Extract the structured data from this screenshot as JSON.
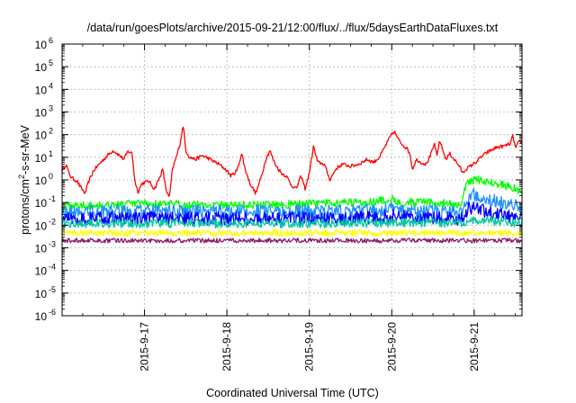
{
  "chart_data": {
    "type": "line",
    "title": "/data/run/goesPlots/archive/2015-09-21/12:00/flux/../flux/5daysEarthDataFluxes.txt",
    "xlabel": "Coordinated Universal Time (UTC)",
    "ylabel": {
      "prefix": "protons/cm",
      "sup": "2",
      "suffix": "-s-sr-MeV"
    },
    "yscale": "log",
    "ylim_exponents": [
      -6,
      6
    ],
    "y_ticks": [
      {
        "base": "10",
        "exp": "-6"
      },
      {
        "base": "10",
        "exp": "-5"
      },
      {
        "base": "10",
        "exp": "-4"
      },
      {
        "base": "10",
        "exp": "-3"
      },
      {
        "base": "10",
        "exp": "-2"
      },
      {
        "base": "10",
        "exp": "-1"
      },
      {
        "base": "10",
        "exp": "0"
      },
      {
        "base": "10",
        "exp": "1"
      },
      {
        "base": "10",
        "exp": "2"
      },
      {
        "base": "10",
        "exp": "3"
      },
      {
        "base": "10",
        "exp": "4"
      },
      {
        "base": "10",
        "exp": "5"
      },
      {
        "base": "10",
        "exp": "6"
      }
    ],
    "x_range_days": [
      16.0,
      21.58
    ],
    "x_ticks": [
      {
        "label": "2015-9-17",
        "day": 17
      },
      {
        "label": "2015-9-18",
        "day": 18
      },
      {
        "label": "2015-9-19",
        "day": 19
      },
      {
        "label": "2015-9-20",
        "day": 20
      },
      {
        "label": "2015-9-21",
        "day": 21
      }
    ],
    "grid": true,
    "series": [
      {
        "color": "#ff0000",
        "noise": 0.08,
        "points": [
          [
            16.0,
            2.5
          ],
          [
            16.05,
            5
          ],
          [
            16.08,
            2.0
          ],
          [
            16.12,
            1.2
          ],
          [
            16.18,
            0.9
          ],
          [
            16.22,
            0.5
          ],
          [
            16.28,
            0.25
          ],
          [
            16.32,
            0.8
          ],
          [
            16.38,
            2.5
          ],
          [
            16.45,
            5
          ],
          [
            16.55,
            12
          ],
          [
            16.62,
            20
          ],
          [
            16.7,
            12
          ],
          [
            16.75,
            8
          ],
          [
            16.8,
            18
          ],
          [
            16.85,
            15
          ],
          [
            16.88,
            1.0
          ],
          [
            16.92,
            0.3
          ],
          [
            16.97,
            0.7
          ],
          [
            17.05,
            0.9
          ],
          [
            17.12,
            0.4
          ],
          [
            17.18,
            1.2
          ],
          [
            17.22,
            3
          ],
          [
            17.26,
            0.4
          ],
          [
            17.3,
            0.15
          ],
          [
            17.34,
            3
          ],
          [
            17.4,
            15
          ],
          [
            17.43,
            40
          ],
          [
            17.47,
            260
          ],
          [
            17.5,
            20
          ],
          [
            17.55,
            10
          ],
          [
            17.62,
            8
          ],
          [
            17.7,
            12
          ],
          [
            17.8,
            8
          ],
          [
            17.9,
            5
          ],
          [
            17.98,
            3
          ],
          [
            18.05,
            1.5
          ],
          [
            18.12,
            2.5
          ],
          [
            18.18,
            15
          ],
          [
            18.22,
            3
          ],
          [
            18.28,
            0.7
          ],
          [
            18.35,
            0.25
          ],
          [
            18.42,
            1.5
          ],
          [
            18.47,
            8
          ],
          [
            18.52,
            20
          ],
          [
            18.56,
            8
          ],
          [
            18.6,
            4
          ],
          [
            18.66,
            2
          ],
          [
            18.72,
            1.5
          ],
          [
            18.78,
            0.6
          ],
          [
            18.84,
            0.4
          ],
          [
            18.9,
            1.5
          ],
          [
            18.95,
            0.4
          ],
          [
            19.0,
            2
          ],
          [
            19.05,
            30
          ],
          [
            19.1,
            6
          ],
          [
            19.18,
            5
          ],
          [
            19.25,
            1
          ],
          [
            19.32,
            3
          ],
          [
            19.4,
            5
          ],
          [
            19.5,
            4
          ],
          [
            19.6,
            5
          ],
          [
            19.7,
            8
          ],
          [
            19.78,
            6
          ],
          [
            19.85,
            10
          ],
          [
            19.92,
            30
          ],
          [
            19.98,
            80
          ],
          [
            20.03,
            140
          ],
          [
            20.08,
            60
          ],
          [
            20.12,
            40
          ],
          [
            20.18,
            25
          ],
          [
            20.22,
            15
          ],
          [
            20.25,
            3
          ],
          [
            20.3,
            8
          ],
          [
            20.35,
            6
          ],
          [
            20.42,
            5
          ],
          [
            20.48,
            15
          ],
          [
            20.52,
            40
          ],
          [
            20.55,
            10
          ],
          [
            20.58,
            60
          ],
          [
            20.62,
            20
          ],
          [
            20.66,
            8
          ],
          [
            20.7,
            15
          ],
          [
            20.76,
            8
          ],
          [
            20.82,
            4
          ],
          [
            20.86,
            2
          ],
          [
            20.9,
            3
          ],
          [
            20.95,
            4
          ],
          [
            21.02,
            6
          ],
          [
            21.08,
            10
          ],
          [
            21.14,
            15
          ],
          [
            21.2,
            20
          ],
          [
            21.28,
            28
          ],
          [
            21.35,
            30
          ],
          [
            21.4,
            35
          ],
          [
            21.44,
            40
          ],
          [
            21.47,
            90
          ],
          [
            21.5,
            25
          ],
          [
            21.54,
            45
          ],
          [
            21.58,
            50
          ]
        ]
      },
      {
        "color": "#00ff00",
        "noise": 0.18,
        "points": [
          [
            16.0,
            0.07
          ],
          [
            16.5,
            0.08
          ],
          [
            17.0,
            0.09
          ],
          [
            17.5,
            0.08
          ],
          [
            18.0,
            0.08
          ],
          [
            18.5,
            0.08
          ],
          [
            19.0,
            0.09
          ],
          [
            19.5,
            0.1
          ],
          [
            19.9,
            0.12
          ],
          [
            20.0,
            0.15
          ],
          [
            20.1,
            0.1
          ],
          [
            20.5,
            0.1
          ],
          [
            20.85,
            0.08
          ],
          [
            20.9,
            0.6
          ],
          [
            20.95,
            0.95
          ],
          [
            21.05,
            1.0
          ],
          [
            21.2,
            0.8
          ],
          [
            21.35,
            0.6
          ],
          [
            21.5,
            0.4
          ],
          [
            21.58,
            0.3
          ]
        ]
      },
      {
        "color": "#1e90ff",
        "noise": 0.3,
        "points": [
          [
            16.0,
            0.04
          ],
          [
            16.5,
            0.04
          ],
          [
            17.0,
            0.04
          ],
          [
            17.5,
            0.04
          ],
          [
            18.0,
            0.04
          ],
          [
            18.5,
            0.04
          ],
          [
            19.0,
            0.04
          ],
          [
            19.5,
            0.04
          ],
          [
            20.0,
            0.05
          ],
          [
            20.5,
            0.04
          ],
          [
            20.85,
            0.035
          ],
          [
            20.9,
            0.12
          ],
          [
            20.97,
            0.25
          ],
          [
            21.1,
            0.2
          ],
          [
            21.25,
            0.12
          ],
          [
            21.4,
            0.08
          ],
          [
            21.58,
            0.06
          ]
        ]
      },
      {
        "color": "#0000ff",
        "noise": 0.3,
        "points": [
          [
            16.0,
            0.02
          ],
          [
            16.5,
            0.02
          ],
          [
            17.0,
            0.02
          ],
          [
            17.5,
            0.02
          ],
          [
            18.0,
            0.02
          ],
          [
            18.5,
            0.02
          ],
          [
            19.0,
            0.02
          ],
          [
            19.5,
            0.02
          ],
          [
            20.0,
            0.025
          ],
          [
            20.5,
            0.02
          ],
          [
            20.85,
            0.02
          ],
          [
            20.92,
            0.05
          ],
          [
            21.0,
            0.06
          ],
          [
            21.15,
            0.04
          ],
          [
            21.3,
            0.03
          ],
          [
            21.45,
            0.025
          ],
          [
            21.58,
            0.022
          ]
        ]
      },
      {
        "color": "#00c8a0",
        "noise": 0.2,
        "points": [
          [
            16.0,
            0.012
          ],
          [
            17.0,
            0.012
          ],
          [
            18.0,
            0.012
          ],
          [
            19.0,
            0.012
          ],
          [
            20.0,
            0.013
          ],
          [
            20.85,
            0.012
          ],
          [
            20.95,
            0.016
          ],
          [
            21.2,
            0.015
          ],
          [
            21.58,
            0.013
          ]
        ]
      },
      {
        "color": "#ffff00",
        "noise": 0.15,
        "points": [
          [
            16.0,
            0.0045
          ],
          [
            17.0,
            0.0045
          ],
          [
            18.0,
            0.0045
          ],
          [
            19.0,
            0.0045
          ],
          [
            20.0,
            0.0045
          ],
          [
            21.0,
            0.0045
          ],
          [
            21.58,
            0.0045
          ]
        ]
      },
      {
        "color": "#8b1a6b",
        "noise": 0.1,
        "points": [
          [
            16.0,
            0.0021
          ],
          [
            17.0,
            0.0021
          ],
          [
            18.0,
            0.0021
          ],
          [
            19.0,
            0.0021
          ],
          [
            20.0,
            0.0021
          ],
          [
            21.0,
            0.0021
          ],
          [
            21.58,
            0.0021
          ]
        ]
      }
    ]
  }
}
